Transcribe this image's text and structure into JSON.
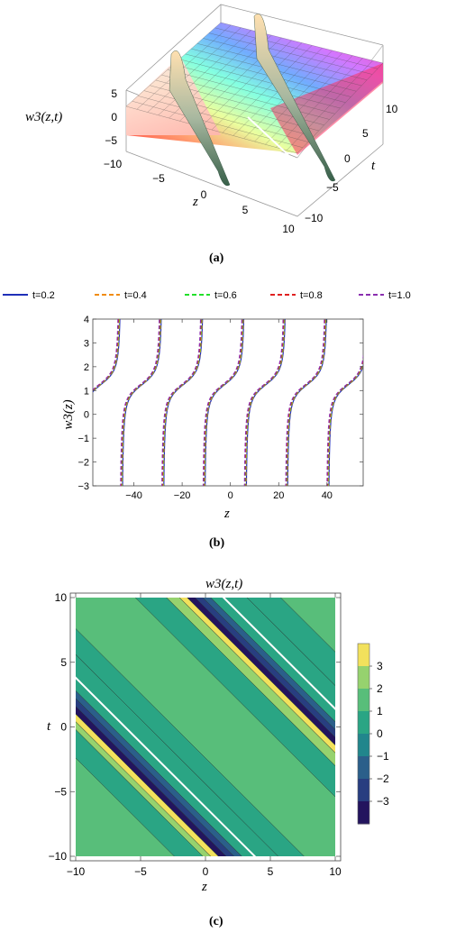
{
  "chart_data": [
    {
      "type": "surface3d",
      "panel_label": "(a)",
      "zlabel": "w3(z,t)",
      "xlabel": "z",
      "ylabel": "t",
      "x_ticks": [
        "−10",
        "−5",
        "0",
        "5",
        "10"
      ],
      "y_ticks": [
        "10",
        "5",
        "0",
        "−5",
        "−10"
      ],
      "z_ticks": [
        "5",
        "0",
        "−5"
      ],
      "xlim": [
        -10,
        10
      ],
      "ylim": [
        -10,
        10
      ],
      "zlim": [
        -6,
        6
      ]
    },
    {
      "type": "line",
      "panel_label": "(b)",
      "xlabel": "z",
      "ylabel": "w3(z)",
      "xlim": [
        -57,
        55
      ],
      "ylim": [
        -3,
        4
      ],
      "x_ticks": [
        "−40",
        "−20",
        "0",
        "20",
        "40"
      ],
      "y_ticks": [
        "4",
        "3",
        "2",
        "1",
        "0",
        "−1",
        "−2",
        "−3"
      ],
      "legend_position": "top",
      "period": 17.1,
      "branch_centers": [
        -45.5,
        -28.4,
        -11.3,
        5.8,
        22.9,
        40.0
      ],
      "series": [
        {
          "name": "t=0.2",
          "color": "#1f2fb8",
          "dash": "solid",
          "offset": 0.8
        },
        {
          "name": "t=0.4",
          "color": "#f08c10",
          "dash": "dashed",
          "offset": 0.4
        },
        {
          "name": "t=0.6",
          "color": "#22e02a",
          "dash": "dashed",
          "offset": 0.0
        },
        {
          "name": "t=0.8",
          "color": "#e02020",
          "dash": "dashed",
          "offset": -0.4
        },
        {
          "name": "t=1.0",
          "color": "#8b2fb0",
          "dash": "dashed",
          "offset": -0.8
        }
      ]
    },
    {
      "type": "contour",
      "panel_label": "(c)",
      "title": "w3(z,t)",
      "xlabel": "z",
      "ylabel": "t",
      "xlim": [
        -10,
        10
      ],
      "ylim": [
        -10,
        10
      ],
      "x_ticks": [
        "−10",
        "−5",
        "0",
        "5",
        "10"
      ],
      "y_ticks": [
        "10",
        "5",
        "0",
        "−5",
        "−10"
      ],
      "colorbar": {
        "ticks": [
          "3",
          "2",
          "1",
          "0",
          "−1",
          "−2",
          "−3"
        ],
        "levels": [
          {
            "from": 3,
            "to": 4,
            "color": "#f2e15c"
          },
          {
            "from": 2,
            "to": 3,
            "color": "#96d26e"
          },
          {
            "from": 1,
            "to": 2,
            "color": "#58be7a"
          },
          {
            "from": 0,
            "to": 1,
            "color": "#2aa584"
          },
          {
            "from": -1,
            "to": 0,
            "color": "#21868c"
          },
          {
            "from": -2,
            "to": -1,
            "color": "#2b5f8a"
          },
          {
            "from": -3,
            "to": -2,
            "color": "#283e80"
          },
          {
            "from": -4,
            "to": -3,
            "color": "#23145e"
          }
        ]
      }
    }
  ]
}
